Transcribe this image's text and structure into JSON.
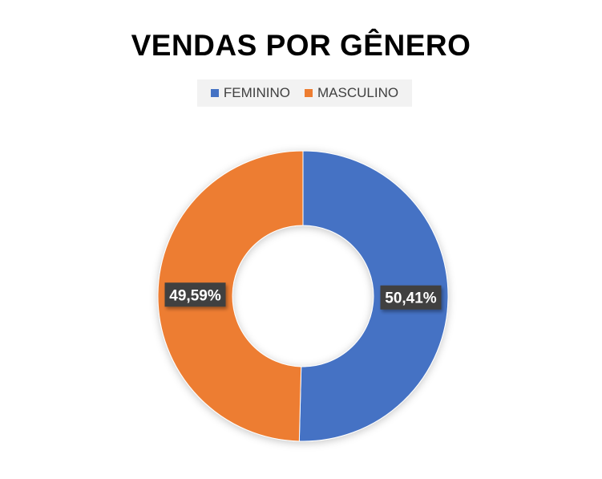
{
  "chart_data": {
    "type": "pie",
    "variant": "donut",
    "title": "VENDAS POR GÊNERO",
    "legend_position": "top",
    "categories": [
      "FEMININO",
      "MASCULINO"
    ],
    "values": [
      50.41,
      49.59
    ],
    "data_labels": [
      "50,41%",
      "49,59%"
    ],
    "colors": [
      "#4472c4",
      "#ed7d31"
    ],
    "label_background": "#404040"
  }
}
